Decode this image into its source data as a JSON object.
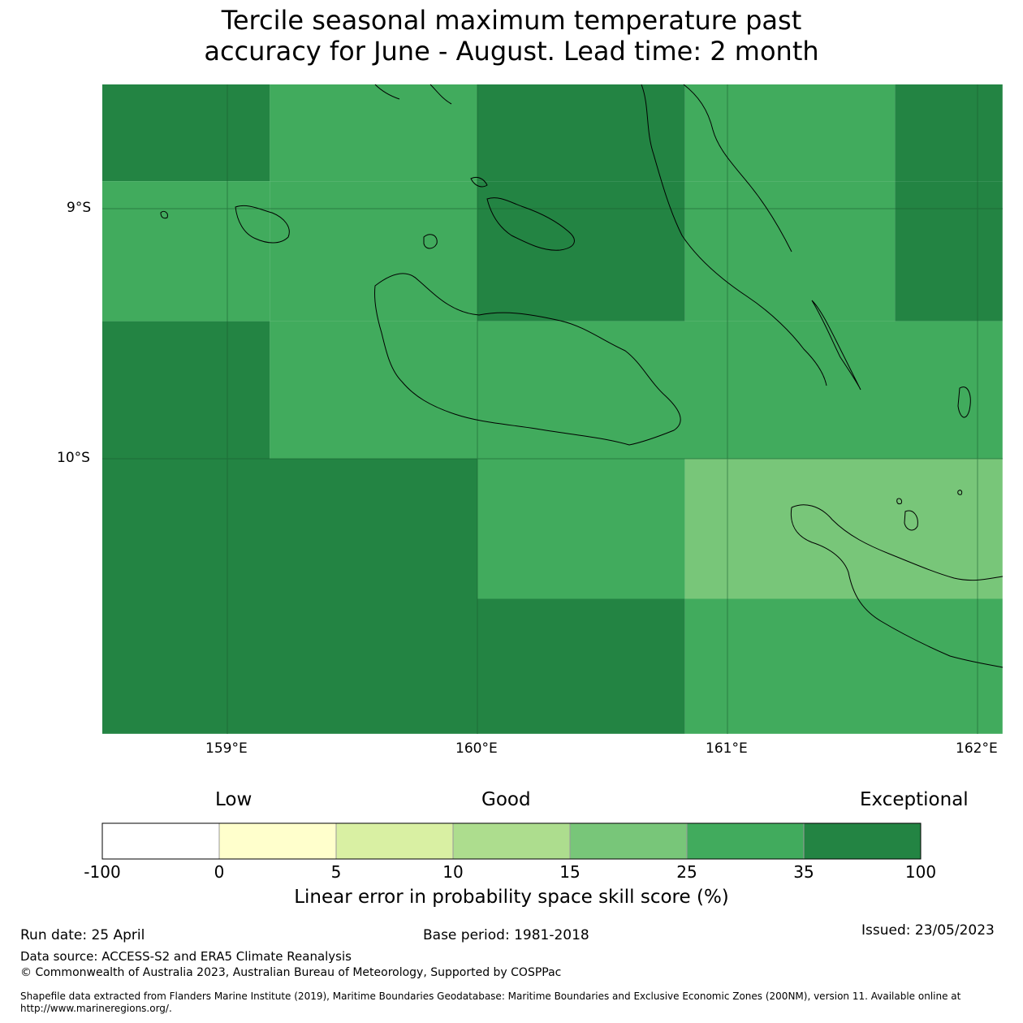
{
  "title": {
    "line1": "Tercile seasonal maximum temperature past",
    "line2": "accuracy for June - August. Lead time: 2 month"
  },
  "map": {
    "lat_labels": [
      "9°S",
      "10°S"
    ],
    "lon_labels": [
      "159°E",
      "160°E",
      "161°E",
      "162°E"
    ],
    "extent": {
      "lon": [
        158.5,
        162.1
      ],
      "lat": [
        -8.5,
        -11.1
      ]
    },
    "grid_cells": [
      {
        "lon": [
          158.5,
          159.17
        ],
        "lat": [
          -8.5,
          -8.89
        ],
        "value_class": "35-100"
      },
      {
        "lon": [
          159.17,
          160.0
        ],
        "lat": [
          -8.5,
          -8.89
        ],
        "value_class": "25-35"
      },
      {
        "lon": [
          160.0,
          160.83
        ],
        "lat": [
          -8.5,
          -8.89
        ],
        "value_class": "35-100"
      },
      {
        "lon": [
          160.83,
          161.67
        ],
        "lat": [
          -8.5,
          -8.89
        ],
        "value_class": "25-35"
      },
      {
        "lon": [
          161.67,
          162.1
        ],
        "lat": [
          -8.5,
          -8.89
        ],
        "value_class": "35-100"
      },
      {
        "lon": [
          158.5,
          159.17
        ],
        "lat": [
          -8.89,
          -9.45
        ],
        "value_class": "25-35"
      },
      {
        "lon": [
          159.17,
          160.0
        ],
        "lat": [
          -8.89,
          -9.45
        ],
        "value_class": "25-35"
      },
      {
        "lon": [
          160.0,
          160.83
        ],
        "lat": [
          -8.89,
          -9.45
        ],
        "value_class": "35-100"
      },
      {
        "lon": [
          160.83,
          161.67
        ],
        "lat": [
          -8.89,
          -9.45
        ],
        "value_class": "25-35"
      },
      {
        "lon": [
          161.67,
          162.1
        ],
        "lat": [
          -8.89,
          -9.45
        ],
        "value_class": "35-100"
      },
      {
        "lon": [
          158.5,
          159.17
        ],
        "lat": [
          -9.45,
          -10.0
        ],
        "value_class": "35-100"
      },
      {
        "lon": [
          159.17,
          162.1
        ],
        "lat": [
          -9.45,
          -10.0
        ],
        "value_class": "25-35"
      },
      {
        "lon": [
          158.5,
          160.0
        ],
        "lat": [
          -10.0,
          -11.1
        ],
        "value_class": "35-100"
      },
      {
        "lon": [
          160.0,
          160.83
        ],
        "lat": [
          -10.0,
          -10.56
        ],
        "value_class": "25-35"
      },
      {
        "lon": [
          160.83,
          162.1
        ],
        "lat": [
          -10.0,
          -10.56
        ],
        "value_class": "15-25"
      },
      {
        "lon": [
          160.0,
          160.83
        ],
        "lat": [
          -10.56,
          -11.1
        ],
        "value_class": "35-100"
      },
      {
        "lon": [
          160.83,
          162.1
        ],
        "lat": [
          -10.56,
          -11.1
        ],
        "value_class": "25-35"
      }
    ]
  },
  "colorbar": {
    "categories": [
      "Low",
      "Good",
      "Exceptional"
    ],
    "ticks": [
      "-100",
      "0",
      "5",
      "10",
      "15",
      "25",
      "35",
      "100"
    ],
    "colors": [
      "#ffffff",
      "#ffffcc",
      "#d9f0a3",
      "#addd8e",
      "#78c679",
      "#41ab5d",
      "#238443"
    ],
    "title": "Linear error in probability space skill score (%)"
  },
  "footer": {
    "run_date": "Run date: 25 April",
    "base_period": "Base period: 1981-2018",
    "issued": "Issued: 23/05/2023",
    "data_source": "Data source: ACCESS-S2 and ERA5 Climate Reanalysis",
    "copyright": "© Commonwealth of Australia 2023, Australian Bureau of Meteorology, Supported by COSPPac",
    "shapefile_line1": "Shapefile data extracted from Flanders Marine Institute (2019), Maritime Boundaries Geodatabase: Maritime Boundaries and Exclusive Economic Zones (200NM), version 11. Available online at",
    "shapefile_line2": "http://www.marineregions.org/."
  }
}
